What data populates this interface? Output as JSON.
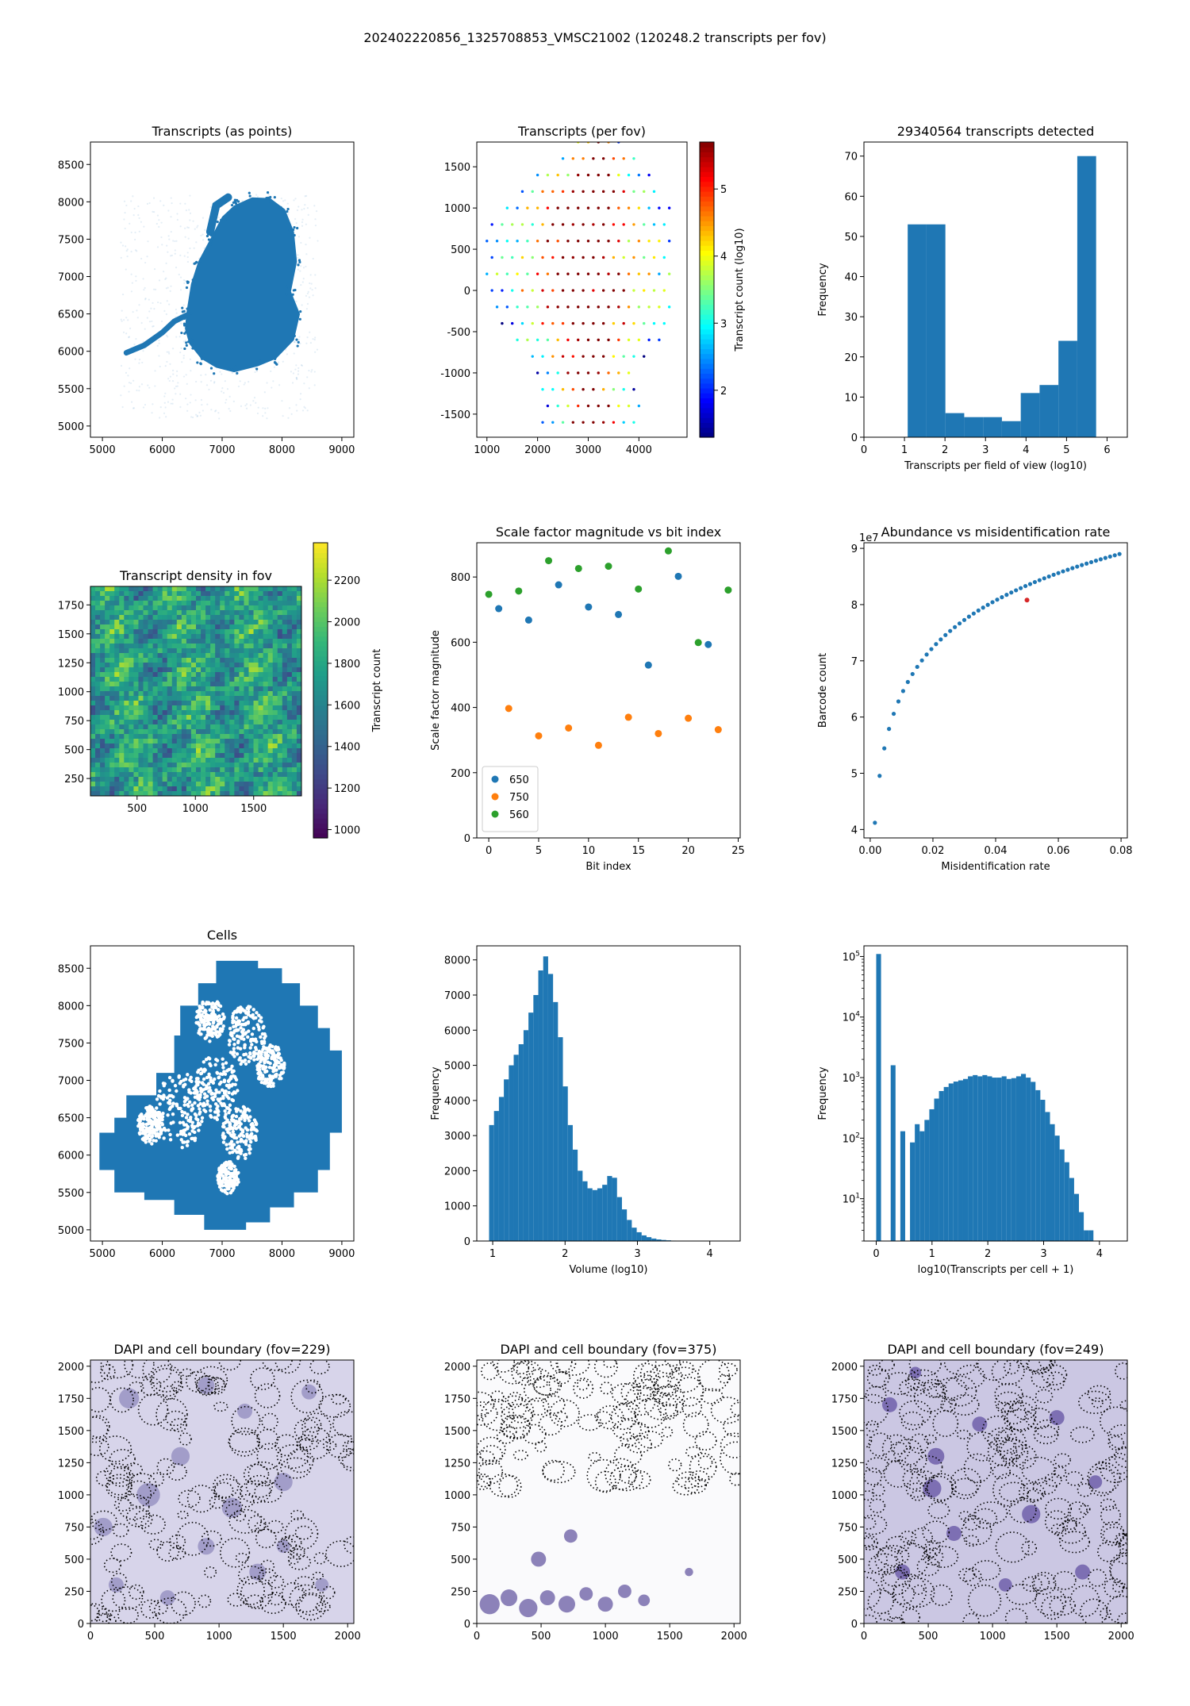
{
  "figure": {
    "suptitle": "202402220856_1325708853_VMSC21002 (120248.2 transcripts per fov)"
  },
  "chart_data": [
    {
      "id": "transcripts-points",
      "type": "scatter",
      "title": "Transcripts (as points)",
      "xlabel": "",
      "ylabel": "",
      "xlim": [
        4800,
        9200
      ],
      "ylim": [
        4850,
        8800
      ],
      "xticks": [
        5000,
        6000,
        7000,
        8000,
        9000
      ],
      "yticks": [
        5000,
        5500,
        6000,
        6500,
        7000,
        7500,
        8000,
        8500
      ],
      "color": "#1f77b4",
      "shape_outline": [
        [
          6400,
          6500
        ],
        [
          6480,
          6900
        ],
        [
          6600,
          7200
        ],
        [
          6800,
          7500
        ],
        [
          7000,
          7800
        ],
        [
          7200,
          7950
        ],
        [
          7500,
          8060
        ],
        [
          7800,
          8050
        ],
        [
          8050,
          7900
        ],
        [
          8200,
          7600
        ],
        [
          8250,
          7200
        ],
        [
          8150,
          6800
        ],
        [
          8300,
          6500
        ],
        [
          8200,
          6150
        ],
        [
          7900,
          5900
        ],
        [
          7600,
          5800
        ],
        [
          7200,
          5720
        ],
        [
          6900,
          5780
        ],
        [
          6650,
          5900
        ],
        [
          6450,
          6100
        ],
        [
          6380,
          6300
        ]
      ],
      "tail": [
        [
          5400,
          5980
        ],
        [
          5700,
          6080
        ],
        [
          6000,
          6250
        ],
        [
          6200,
          6400
        ],
        [
          6400,
          6480
        ]
      ],
      "arm": [
        [
          6800,
          7600
        ],
        [
          6900,
          7950
        ],
        [
          7100,
          8060
        ]
      ]
    },
    {
      "id": "transcripts-per-fov",
      "type": "scatter",
      "title": "Transcripts (per fov)",
      "xlabel": "",
      "ylabel": "",
      "xlim": [
        800,
        4950
      ],
      "ylim": [
        -1780,
        1800
      ],
      "xticks": [
        1000,
        2000,
        3000,
        4000
      ],
      "yticks": [
        -1500,
        -1000,
        -500,
        0,
        500,
        1000,
        1500
      ],
      "colorbar": {
        "label": "Transcript count (log10)",
        "range": [
          1.3,
          5.7
        ],
        "ticks": [
          2,
          3,
          4,
          5
        ],
        "colormap": "jet"
      }
    },
    {
      "id": "fov-histogram",
      "type": "bar",
      "title": "29340564 transcripts detected",
      "xlabel": "Transcripts per field of view (log10)",
      "ylabel": "Frequency",
      "xlim": [
        0,
        6.5
      ],
      "ylim": [
        0,
        73.5
      ],
      "xticks": [
        0,
        1,
        2,
        3,
        4,
        5,
        6
      ],
      "yticks": [
        0,
        10,
        20,
        30,
        40,
        50,
        60,
        70
      ],
      "bin_edges": [
        1.08,
        1.545,
        2.01,
        2.475,
        2.94,
        3.405,
        3.87,
        4.335,
        4.8,
        5.265,
        5.73
      ],
      "values": [
        53,
        53,
        6,
        5,
        5,
        4,
        11,
        13,
        24,
        70
      ],
      "color": "#1f77b4"
    },
    {
      "id": "transcript-density",
      "type": "heatmap",
      "title": "Transcript density in fov",
      "xlabel": "",
      "ylabel": "",
      "xlim": [
        100,
        1910
      ],
      "ylim": [
        100,
        1910
      ],
      "xticks": [
        500,
        1000,
        1500
      ],
      "yticks": [
        250,
        500,
        750,
        1000,
        1250,
        1500,
        1750
      ],
      "colorbar": {
        "label": "Transcript count",
        "range": [
          960,
          2380
        ],
        "ticks": [
          1000,
          1200,
          1400,
          1600,
          1800,
          2000,
          2200
        ],
        "colormap": "viridis"
      }
    },
    {
      "id": "scale-factor",
      "type": "scatter",
      "title": "Scale factor magnitude vs bit index",
      "xlabel": "Bit index",
      "ylabel": "Scale factor magnitude",
      "xlim": [
        -1.2,
        25.2
      ],
      "ylim": [
        0,
        905
      ],
      "xticks": [
        0,
        5,
        10,
        15,
        20,
        25
      ],
      "yticks": [
        0,
        200,
        400,
        600,
        800
      ],
      "legend_position": "lower-left",
      "series": [
        {
          "name": "650",
          "color": "#1f77b4",
          "x": [
            1,
            4,
            7,
            10,
            13,
            16,
            19,
            22
          ],
          "y": [
            703,
            668,
            776,
            708,
            685,
            530,
            802,
            593
          ]
        },
        {
          "name": "750",
          "color": "#ff7f0e",
          "x": [
            2,
            5,
            8,
            11,
            14,
            17,
            20,
            23
          ],
          "y": [
            397,
            313,
            337,
            284,
            370,
            320,
            367,
            332
          ]
        },
        {
          "name": "560",
          "color": "#2ca02c",
          "x": [
            0,
            3,
            6,
            9,
            12,
            15,
            18,
            21,
            24
          ],
          "y": [
            747,
            757,
            850,
            826,
            833,
            763,
            880,
            599,
            760
          ]
        }
      ]
    },
    {
      "id": "abundance-misid",
      "type": "scatter",
      "title": "Abundance vs misidentification rate",
      "xlabel": "Misidentification rate",
      "ylabel": "Barcode count",
      "offset_label": "1e7",
      "xlim": [
        -0.002,
        0.082
      ],
      "ylim": [
        3.85,
        9.1
      ],
      "xticks": [
        0.0,
        0.02,
        0.04,
        0.06,
        0.08
      ],
      "xtick_labels": [
        "0.00",
        "0.02",
        "0.04",
        "0.06",
        "0.08"
      ],
      "yticks": [
        4,
        5,
        6,
        7,
        8,
        9
      ],
      "curve": {
        "x_start": 0.0015,
        "x_end": 0.0795,
        "n": 53,
        "y_start": 4.12,
        "y_end": 8.9
      },
      "highlight": {
        "x": 0.05,
        "y": 8.08,
        "color": "#d62728"
      },
      "color": "#1f77b4"
    },
    {
      "id": "cells",
      "type": "scatter",
      "title": "Cells",
      "xlabel": "",
      "ylabel": "",
      "xlim": [
        4800,
        9200
      ],
      "ylim": [
        4850,
        8800
      ],
      "xticks": [
        5000,
        6000,
        7000,
        8000,
        9000
      ],
      "yticks": [
        5000,
        5500,
        6000,
        6500,
        7000,
        7500,
        8000,
        8500
      ],
      "color": "#1f77b4",
      "tile_outline": [
        [
          4950,
          6000
        ],
        [
          4950,
          5800
        ],
        [
          5200,
          5800
        ],
        [
          5200,
          5500
        ],
        [
          5700,
          5500
        ],
        [
          5700,
          5400
        ],
        [
          6200,
          5400
        ],
        [
          6200,
          5200
        ],
        [
          6700,
          5200
        ],
        [
          6700,
          5000
        ],
        [
          7400,
          5000
        ],
        [
          7400,
          5100
        ],
        [
          7800,
          5100
        ],
        [
          7800,
          5300
        ],
        [
          8200,
          5300
        ],
        [
          8200,
          5500
        ],
        [
          8600,
          5500
        ],
        [
          8600,
          5800
        ],
        [
          8800,
          5800
        ],
        [
          8800,
          6300
        ],
        [
          9000,
          6300
        ],
        [
          9000,
          7400
        ],
        [
          8800,
          7400
        ],
        [
          8800,
          7700
        ],
        [
          8600,
          7700
        ],
        [
          8600,
          8000
        ],
        [
          8300,
          8000
        ],
        [
          8300,
          8300
        ],
        [
          8000,
          8300
        ],
        [
          8000,
          8500
        ],
        [
          7600,
          8500
        ],
        [
          7600,
          8600
        ],
        [
          6900,
          8600
        ],
        [
          6900,
          8300
        ],
        [
          6600,
          8300
        ],
        [
          6600,
          8000
        ],
        [
          6300,
          8000
        ],
        [
          6300,
          7600
        ],
        [
          6200,
          7600
        ],
        [
          6200,
          7100
        ],
        [
          5900,
          7100
        ],
        [
          5900,
          6800
        ],
        [
          5400,
          6800
        ],
        [
          5400,
          6500
        ],
        [
          5200,
          6500
        ],
        [
          5200,
          6300
        ],
        [
          4950,
          6300
        ]
      ]
    },
    {
      "id": "volume-histogram",
      "type": "bar",
      "title": "",
      "xlabel": "Volume (log10)",
      "ylabel": "Frequency",
      "xlim": [
        0.78,
        4.42
      ],
      "ylim": [
        0,
        8400
      ],
      "xticks": [
        1,
        2,
        3,
        4
      ],
      "yticks": [
        0,
        1000,
        2000,
        3000,
        4000,
        5000,
        6000,
        7000,
        8000
      ],
      "bin_start": 0.95,
      "bin_width": 0.068,
      "values": [
        3300,
        3700,
        4100,
        4600,
        5000,
        5300,
        5600,
        6000,
        6500,
        7000,
        7700,
        8100,
        7600,
        6800,
        5800,
        4400,
        3300,
        2600,
        2000,
        1700,
        1500,
        1450,
        1500,
        1600,
        1850,
        1800,
        1250,
        900,
        600,
        380,
        250,
        160,
        110,
        70,
        45,
        30,
        20,
        12,
        8,
        5
      ],
      "color": "#1f77b4"
    },
    {
      "id": "transcripts-per-cell",
      "type": "bar",
      "title": "",
      "xlabel": "log10(Transcripts per cell + 1)",
      "ylabel": "Frequency",
      "log_y": true,
      "xlim": [
        -0.22,
        4.5
      ],
      "ylim": [
        2,
        150000
      ],
      "xticks": [
        0,
        1,
        2,
        3,
        4
      ],
      "yticks": [
        10,
        100,
        1000,
        10000,
        100000
      ],
      "ytick_labels": [
        "10",
        "10",
        "10",
        "10",
        "10"
      ],
      "ytick_exponents": [
        "1",
        "2",
        "3",
        "4",
        "5"
      ],
      "bin_start": 0,
      "bin_width": 0.0865,
      "values": [
        110000,
        0,
        0,
        1600,
        0,
        130,
        0,
        85,
        170,
        130,
        200,
        300,
        450,
        600,
        700,
        800,
        860,
        900,
        950,
        1050,
        1100,
        1050,
        1100,
        1050,
        1000,
        1000,
        1050,
        950,
        980,
        1050,
        1150,
        1000,
        850,
        620,
        430,
        270,
        170,
        110,
        65,
        40,
        22,
        12,
        6,
        3,
        3,
        0,
        0,
        0,
        0
      ],
      "color": "#1f77b4"
    },
    {
      "id": "dapi-fov229",
      "type": "heatmap",
      "title": "DAPI and cell boundary (fov=229)",
      "xlabel": "",
      "ylabel": "",
      "xlim": [
        0,
        2048
      ],
      "ylim": [
        0,
        2048
      ],
      "xticks": [
        0,
        500,
        1000,
        1500,
        2000
      ],
      "yticks": [
        0,
        250,
        500,
        750,
        1000,
        1250,
        1500,
        1750,
        2000
      ],
      "background": "#d7d4ea",
      "nucleus_color": "#8c86bb",
      "nuclei": [
        [
          450,
          1000,
          70
        ],
        [
          1100,
          900,
          60
        ],
        [
          700,
          1300,
          55
        ],
        [
          1500,
          1100,
          55
        ],
        [
          300,
          1750,
          60
        ],
        [
          1700,
          1800,
          45
        ],
        [
          900,
          600,
          50
        ],
        [
          1300,
          400,
          50
        ],
        [
          200,
          300,
          45
        ],
        [
          1800,
          300,
          40
        ],
        [
          600,
          200,
          45
        ],
        [
          100,
          750,
          55
        ],
        [
          1500,
          600,
          40
        ],
        [
          1200,
          1650,
          45
        ],
        [
          900,
          1850,
          50
        ]
      ]
    },
    {
      "id": "dapi-fov375",
      "type": "heatmap",
      "title": "DAPI and cell boundary (fov=375)",
      "xlabel": "",
      "ylabel": "",
      "xlim": [
        0,
        2048
      ],
      "ylim": [
        0,
        2048
      ],
      "xticks": [
        0,
        500,
        1000,
        1500,
        2000
      ],
      "yticks": [
        0,
        250,
        500,
        750,
        1000,
        1250,
        1500,
        1750,
        2000
      ],
      "background": "#fafafc",
      "nucleus_color": "#5d4e9c",
      "nuclei": [
        [
          100,
          150,
          60
        ],
        [
          250,
          200,
          50
        ],
        [
          400,
          120,
          55
        ],
        [
          550,
          200,
          45
        ],
        [
          700,
          150,
          50
        ],
        [
          850,
          230,
          40
        ],
        [
          1000,
          150,
          45
        ],
        [
          1150,
          250,
          40
        ],
        [
          1300,
          180,
          35
        ],
        [
          480,
          500,
          45
        ],
        [
          730,
          680,
          40
        ],
        [
          1650,
          400,
          25
        ]
      ]
    },
    {
      "id": "dapi-fov249",
      "type": "heatmap",
      "title": "DAPI and cell boundary (fov=249)",
      "xlabel": "",
      "ylabel": "",
      "xlim": [
        0,
        2048
      ],
      "ylim": [
        0,
        2048
      ],
      "xticks": [
        0,
        500,
        1000,
        1500,
        2000
      ],
      "yticks": [
        0,
        250,
        500,
        750,
        1000,
        1250,
        1500,
        1750,
        2000
      ],
      "background": "#cbc7e3",
      "nucleus_color": "#5b4a9e",
      "nuclei": [
        [
          530,
          1050,
          55
        ],
        [
          560,
          1300,
          50
        ],
        [
          1300,
          850,
          55
        ],
        [
          900,
          1550,
          45
        ],
        [
          200,
          1700,
          45
        ],
        [
          1500,
          1600,
          45
        ],
        [
          1700,
          400,
          45
        ],
        [
          300,
          400,
          45
        ],
        [
          1100,
          300,
          40
        ],
        [
          700,
          700,
          45
        ],
        [
          1800,
          1100,
          40
        ],
        [
          400,
          1950,
          35
        ]
      ]
    }
  ]
}
